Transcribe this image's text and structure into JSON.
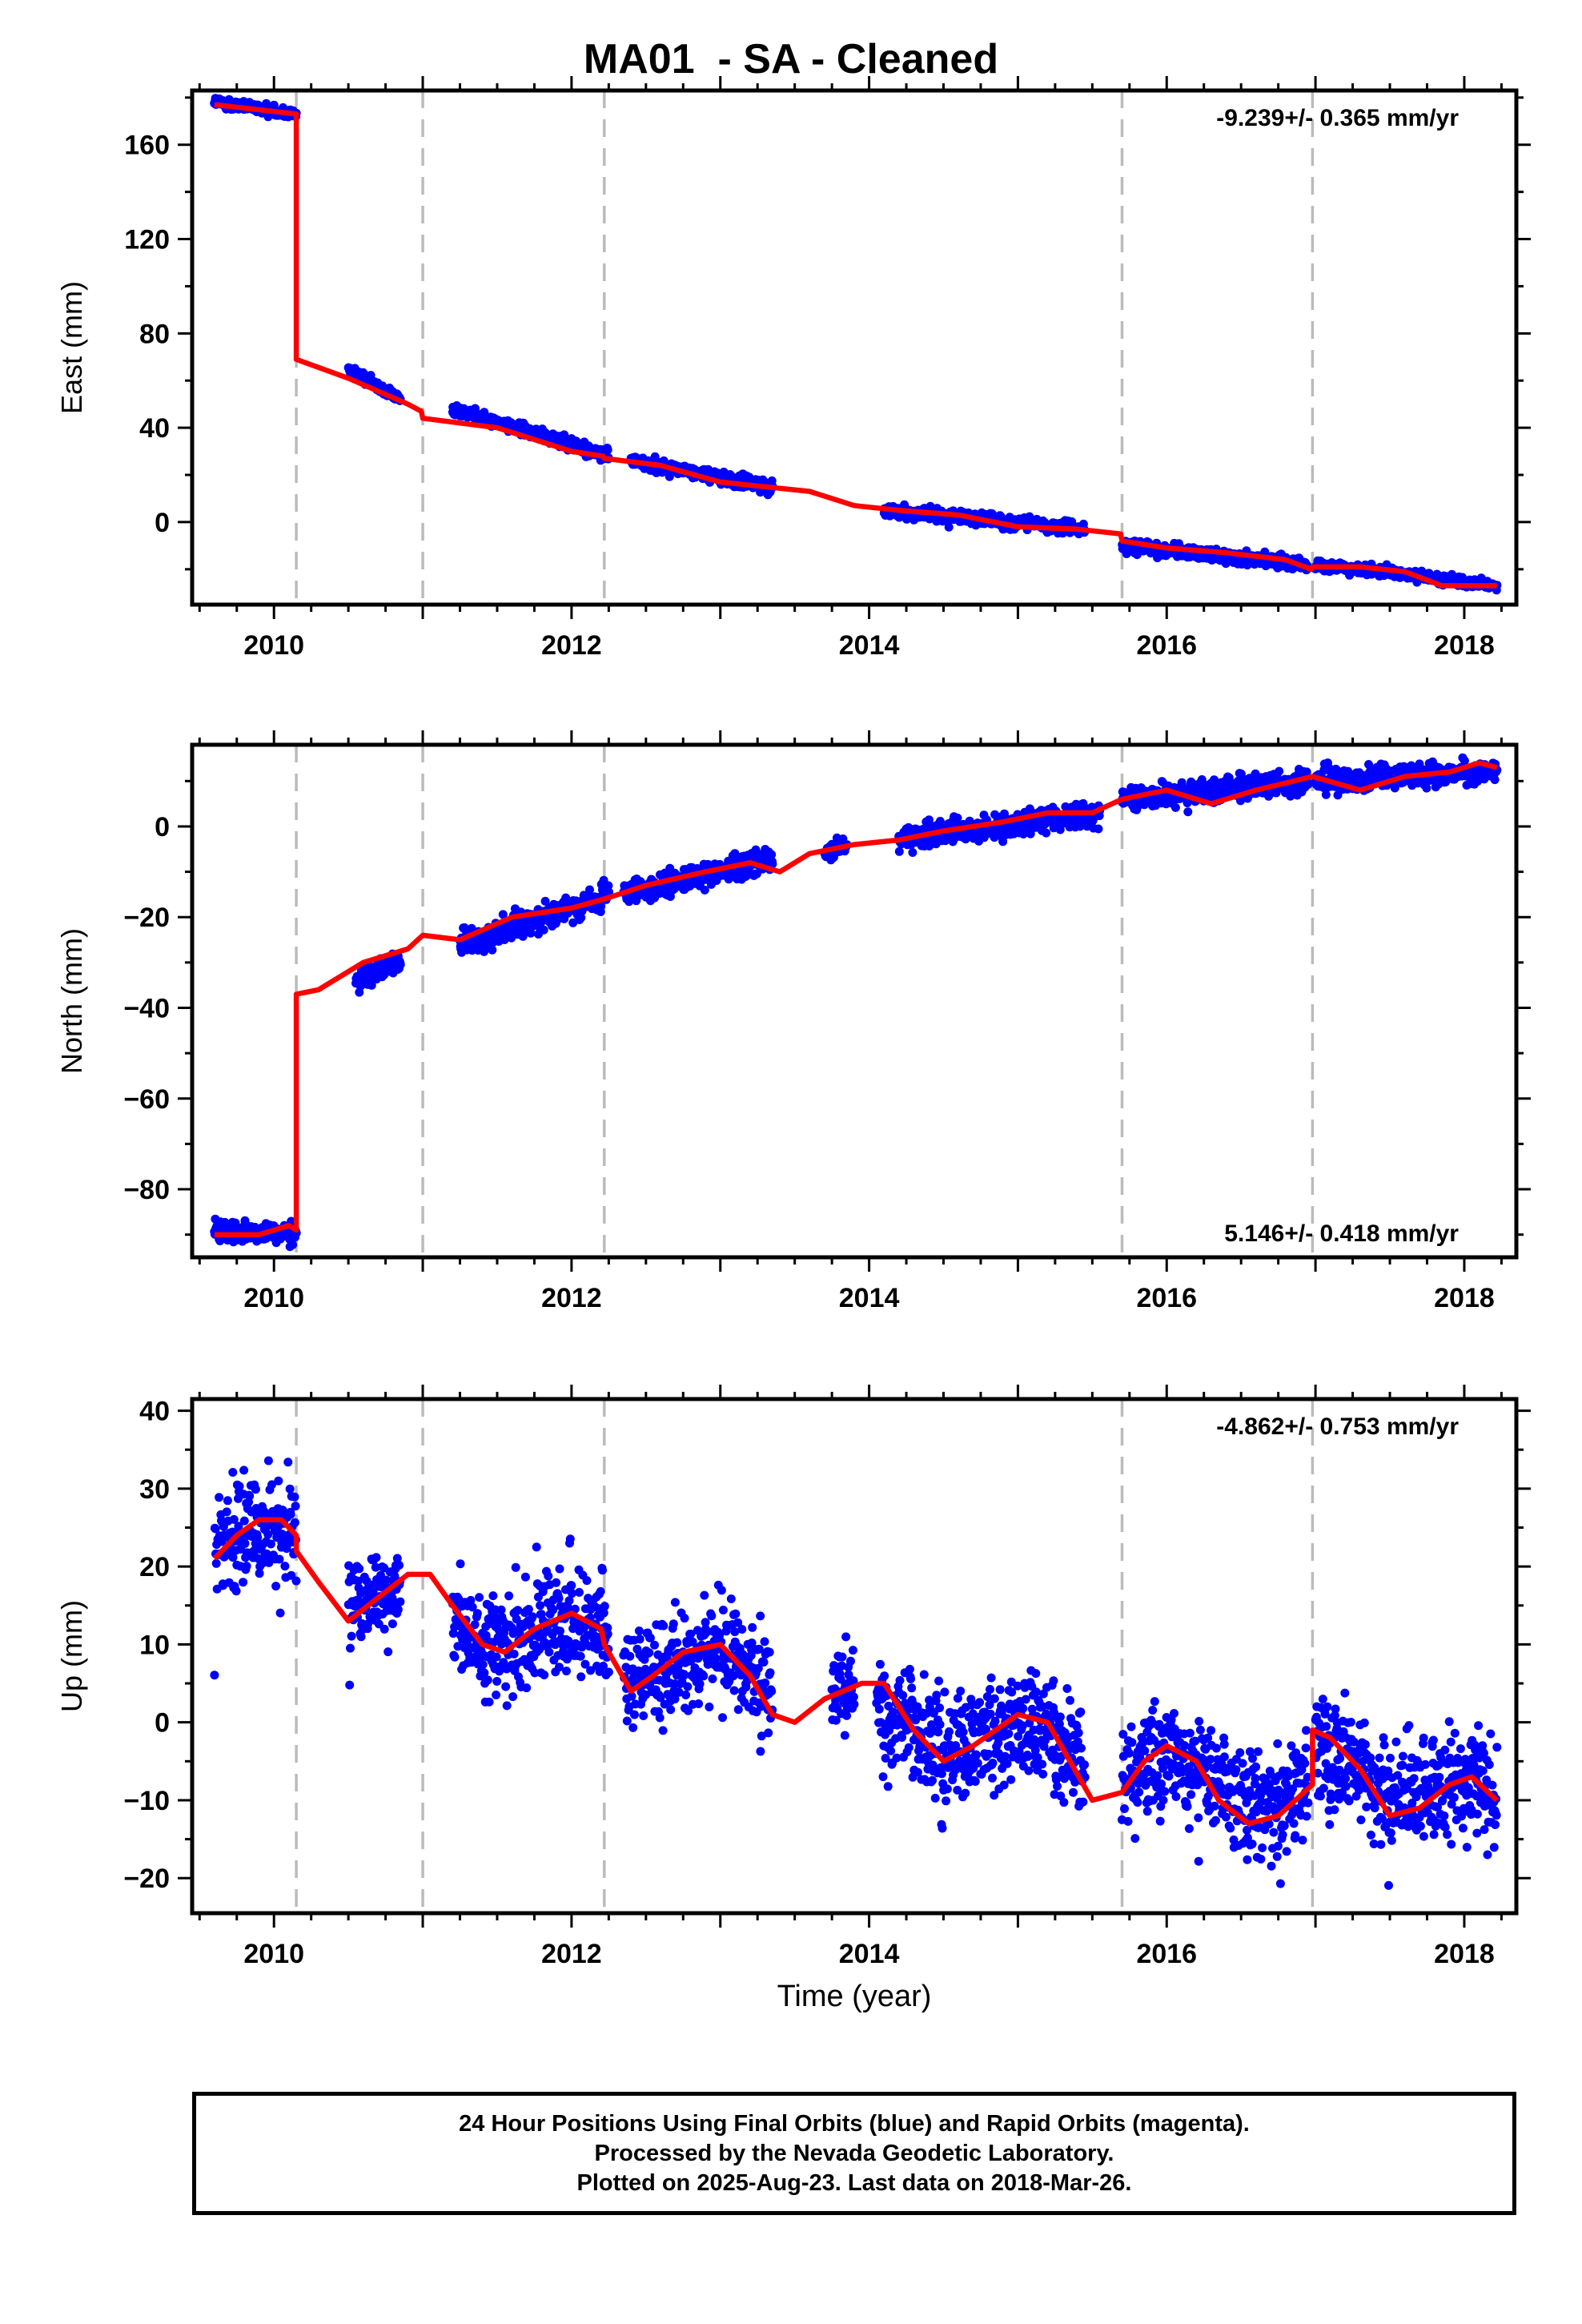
{
  "title": "MA01  - SA - Cleaned",
  "colors": {
    "data_points": "#0000ff",
    "model_fit": "#ff0000",
    "offset_lines": "#bbbbbb",
    "axes": "#000000"
  },
  "footer": {
    "line1": "24 Hour Positions Using Final Orbits (blue) and Rapid Orbits (magenta).",
    "line2": "Processed by the Nevada Geodetic Laboratory.",
    "line3": "Plotted on 2025-Aug-23. Last data on 2018-Mar-26."
  },
  "chart_data": [
    {
      "type": "scatter",
      "component": "east",
      "ylabel": "East (mm)",
      "xlabel": "",
      "xlim": [
        2009.45,
        2018.35
      ],
      "ylim": [
        -35,
        183
      ],
      "xticks": [
        2010,
        2012,
        2014,
        2016,
        2018
      ],
      "yticks": [
        0,
        40,
        80,
        120,
        160
      ],
      "rate_annotation": "-9.239+/- 0.365 mm/yr",
      "rate_position": "top-right",
      "offset_epochs": [
        2010.15,
        2011.0,
        2012.22,
        2015.7,
        2016.98
      ],
      "data_series": {
        "name": "24 Hour Positions (Final Orbits)",
        "segments": [
          {
            "x": [
              2009.6,
              2010.15
            ],
            "y": [
              178,
              173
            ],
            "scatter": 1.5
          },
          {
            "x": [
              2010.5,
              2010.85
            ],
            "y": [
              65,
              52
            ],
            "scatter": 1.5
          },
          {
            "x": [
              2011.2,
              2012.25
            ],
            "y": [
              48,
              28
            ],
            "scatter": 1.8
          },
          {
            "x": [
              2012.4,
              2013.35
            ],
            "y": [
              26,
              15
            ],
            "scatter": 1.8
          },
          {
            "x": [
              2014.1,
              2015.45
            ],
            "y": [
              5,
              -3
            ],
            "scatter": 1.8
          },
          {
            "x": [
              2015.7,
              2016.95
            ],
            "y": [
              -10,
              -18
            ],
            "scatter": 1.8
          },
          {
            "x": [
              2017.0,
              2018.22
            ],
            "y": [
              -18,
              -27
            ],
            "scatter": 1.5
          }
        ]
      },
      "model": {
        "name": "Model fit",
        "x": [
          2009.6,
          2010.15,
          2010.15,
          2010.5,
          2010.9,
          2010.99,
          2011.0,
          2011.5,
          2012.0,
          2012.21,
          2012.22,
          2012.6,
          2013.0,
          2013.3,
          2013.6,
          2013.9,
          2014.2,
          2014.6,
          2015.0,
          2015.4,
          2015.69,
          2015.7,
          2016.0,
          2016.4,
          2016.8,
          2016.97,
          2016.98,
          2017.3,
          2017.6,
          2017.85,
          2018.0,
          2018.22
        ],
        "y": [
          177,
          173,
          69,
          61,
          50,
          47,
          44,
          40,
          30,
          28,
          27,
          24,
          17,
          15,
          13,
          7,
          5,
          3,
          -2,
          -3,
          -5,
          -8,
          -11,
          -13,
          -16,
          -20,
          -19,
          -19,
          -21,
          -27,
          -27,
          -27
        ]
      }
    },
    {
      "type": "scatter",
      "component": "north",
      "ylabel": "North (mm)",
      "xlabel": "",
      "xlim": [
        2009.45,
        2018.35
      ],
      "ylim": [
        -95,
        18
      ],
      "xticks": [
        2010,
        2012,
        2014,
        2016,
        2018
      ],
      "yticks": [
        -80,
        -60,
        -40,
        -20,
        0
      ],
      "rate_annotation": "5.146+/- 0.418 mm/yr",
      "rate_position": "bottom-right",
      "offset_epochs": [
        2010.15,
        2011.0,
        2012.22,
        2015.7,
        2016.98
      ],
      "data_series": {
        "name": "24 Hour Positions (Final Orbits)",
        "segments": [
          {
            "x": [
              2009.6,
              2010.15
            ],
            "y": [
              -89,
              -90
            ],
            "scatter": 1.5
          },
          {
            "x": [
              2010.55,
              2010.85
            ],
            "y": [
              -34,
              -30
            ],
            "scatter": 1.8
          },
          {
            "x": [
              2011.25,
              2012.25
            ],
            "y": [
              -26,
              -15
            ],
            "scatter": 1.8
          },
          {
            "x": [
              2012.35,
              2013.35
            ],
            "y": [
              -15,
              -7
            ],
            "scatter": 1.8
          },
          {
            "x": [
              2013.7,
              2013.85
            ],
            "y": [
              -6,
              -4
            ],
            "scatter": 1.2
          },
          {
            "x": [
              2014.2,
              2015.55
            ],
            "y": [
              -3,
              3
            ],
            "scatter": 1.8
          },
          {
            "x": [
              2015.7,
              2016.95
            ],
            "y": [
              6,
              10
            ],
            "scatter": 1.8
          },
          {
            "x": [
              2017.0,
              2018.22
            ],
            "y": [
              10,
              12
            ],
            "scatter": 1.8
          }
        ]
      },
      "model": {
        "name": "Model fit",
        "x": [
          2009.6,
          2009.9,
          2010.1,
          2010.15,
          2010.15,
          2010.3,
          2010.6,
          2010.9,
          2011.0,
          2011.25,
          2011.6,
          2012.0,
          2012.22,
          2012.5,
          2012.9,
          2013.2,
          2013.4,
          2013.6,
          2013.9,
          2014.2,
          2014.5,
          2014.9,
          2015.2,
          2015.5,
          2015.7,
          2016.0,
          2016.3,
          2016.6,
          2016.98,
          2017.3,
          2017.6,
          2017.9,
          2018.1,
          2018.22
        ],
        "y": [
          -90,
          -90,
          -88,
          -89,
          -37,
          -36,
          -30,
          -27,
          -24,
          -25,
          -20,
          -18,
          -16,
          -13,
          -10,
          -8,
          -10,
          -6,
          -4,
          -3,
          -1,
          1,
          3,
          3,
          6,
          8,
          5,
          8,
          11,
          8,
          11,
          12,
          14,
          13
        ]
      }
    },
    {
      "type": "scatter",
      "component": "up",
      "ylabel": "Up (mm)",
      "xlabel": "Time (year)",
      "xlim": [
        2009.45,
        2018.35
      ],
      "ylim": [
        -24.5,
        41.5
      ],
      "xticks": [
        2010,
        2012,
        2014,
        2016,
        2018
      ],
      "yticks": [
        -20,
        -10,
        0,
        10,
        20,
        30,
        40
      ],
      "rate_annotation": "-4.862+/- 0.753 mm/yr",
      "rate_position": "top-right",
      "offset_epochs": [
        2010.15,
        2011.0,
        2012.22,
        2015.7,
        2016.98
      ],
      "data_series": {
        "name": "24 Hour Positions (Final Orbits)",
        "segments": [
          {
            "x": [
              2009.6,
              2010.15
            ],
            "y": [
              24,
              24
            ],
            "scatter": 4.5
          },
          {
            "x": [
              2010.5,
              2010.85
            ],
            "y": [
              14,
              17
            ],
            "scatter": 4.5
          },
          {
            "x": [
              2011.2,
              2012.25
            ],
            "y": [
              11,
              12
            ],
            "scatter": 5
          },
          {
            "x": [
              2012.35,
              2013.35
            ],
            "y": [
              6,
              9
            ],
            "scatter": 4.5
          },
          {
            "x": [
              2013.75,
              2013.9
            ],
            "y": [
              4,
              5
            ],
            "scatter": 3
          },
          {
            "x": [
              2014.05,
              2015.45
            ],
            "y": [
              -2,
              -2
            ],
            "scatter": 5
          },
          {
            "x": [
              2015.7,
              2016.95
            ],
            "y": [
              -5,
              -9
            ],
            "scatter": 5
          },
          {
            "x": [
              2017.0,
              2018.22
            ],
            "y": [
              -7,
              -8
            ],
            "scatter": 5
          }
        ]
      },
      "model": {
        "name": "Model fit",
        "x": [
          2009.6,
          2009.75,
          2009.9,
          2010.05,
          2010.15,
          2010.15,
          2010.3,
          2010.5,
          2010.7,
          2010.9,
          2011.05,
          2011.2,
          2011.4,
          2011.55,
          2011.75,
          2012.0,
          2012.2,
          2012.22,
          2012.4,
          2012.55,
          2012.75,
          2013.0,
          2013.2,
          2013.35,
          2013.5,
          2013.7,
          2013.95,
          2014.1,
          2014.3,
          2014.5,
          2014.7,
          2015.0,
          2015.2,
          2015.35,
          2015.5,
          2015.7,
          2015.85,
          2016.0,
          2016.2,
          2016.35,
          2016.55,
          2016.75,
          2016.98,
          2016.98,
          2017.1,
          2017.3,
          2017.5,
          2017.7,
          2017.9,
          2018.05,
          2018.22
        ],
        "y": [
          21,
          24,
          26,
          26,
          24,
          22,
          18,
          13,
          16,
          19,
          19,
          15,
          10,
          9,
          12,
          14,
          12,
          10,
          4,
          6,
          9,
          10,
          6,
          1,
          0,
          3,
          5,
          5,
          -1,
          -5,
          -3,
          1,
          0,
          -5,
          -10,
          -9,
          -5,
          -3,
          -5,
          -10,
          -13,
          -12,
          -8,
          -1,
          -2,
          -6,
          -12,
          -11,
          -8,
          -7,
          -10
        ]
      }
    }
  ]
}
